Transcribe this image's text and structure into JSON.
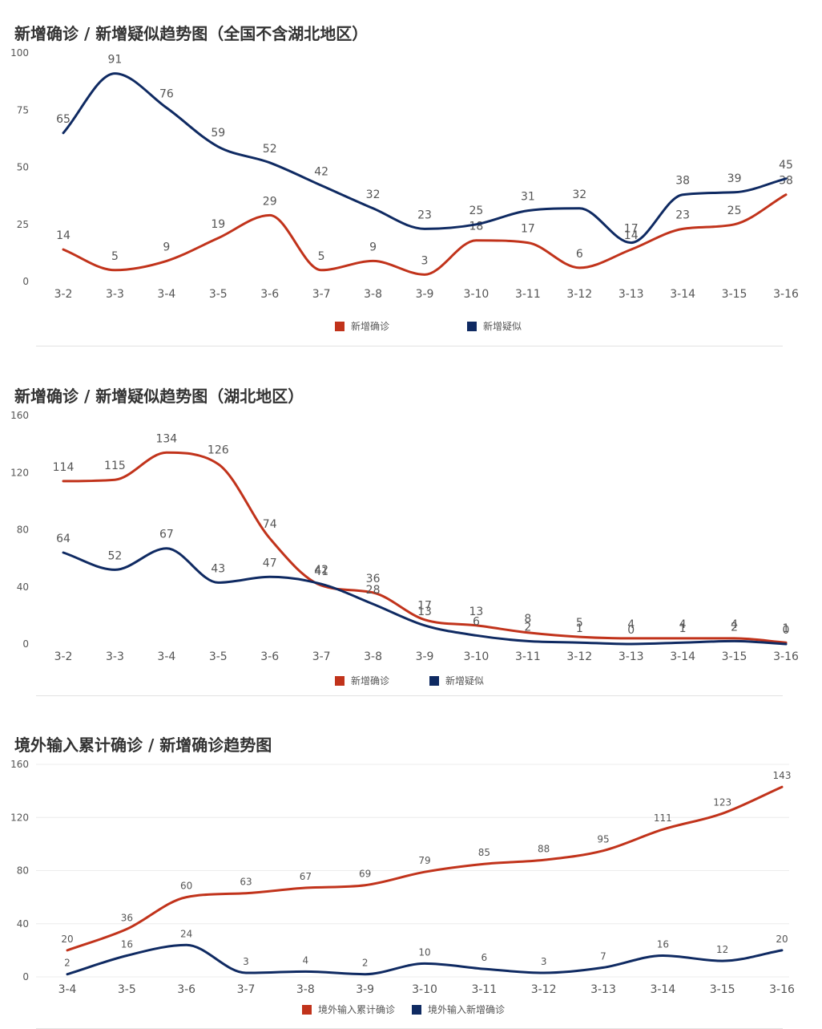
{
  "colors": {
    "red": "#c1331b",
    "navy": "#0f2a62"
  },
  "panels": [
    {
      "title": "新增确诊 / 新增疑似趋势图（全国不含湖北地区）",
      "legend": [
        "新增确诊",
        "新增疑似"
      ]
    },
    {
      "title": "新增确诊 / 新增疑似趋势图（湖北地区）",
      "legend": [
        "新增确诊",
        "新增疑似"
      ]
    },
    {
      "title": "境外输入累计确诊 / 新增确诊趋势图",
      "legend": [
        "境外输入累计确诊",
        "境外输入新增确诊"
      ]
    }
  ],
  "chart_data": [
    {
      "type": "line",
      "title": "新增确诊 / 新增疑似趋势图（全国不含湖北地区）",
      "categories": [
        "3-2",
        "3-3",
        "3-4",
        "3-5",
        "3-6",
        "3-7",
        "3-8",
        "3-9",
        "3-10",
        "3-11",
        "3-12",
        "3-13",
        "3-14",
        "3-15",
        "3-16"
      ],
      "series": [
        {
          "name": "新增确诊",
          "color": "#c1331b",
          "values": [
            14,
            5,
            9,
            19,
            29,
            5,
            9,
            3,
            18,
            17,
            6,
            14,
            23,
            25,
            38
          ]
        },
        {
          "name": "新增疑似",
          "color": "#0f2a62",
          "values": [
            65,
            91,
            76,
            59,
            52,
            42,
            32,
            23,
            25,
            31,
            32,
            17,
            38,
            39,
            45
          ]
        }
      ],
      "yticks": [
        0,
        25,
        50,
        75,
        100
      ],
      "ylim": [
        0,
        100
      ],
      "grid": false,
      "legend_position": "bottom"
    },
    {
      "type": "line",
      "title": "新增确诊 / 新增疑似趋势图（湖北地区）",
      "categories": [
        "3-2",
        "3-3",
        "3-4",
        "3-5",
        "3-6",
        "3-7",
        "3-8",
        "3-9",
        "3-10",
        "3-11",
        "3-12",
        "3-13",
        "3-14",
        "3-15",
        "3-16"
      ],
      "series": [
        {
          "name": "新增确诊",
          "color": "#c1331b",
          "values": [
            114,
            115,
            134,
            126,
            74,
            41,
            36,
            17,
            13,
            8,
            5,
            4,
            4,
            4,
            1
          ]
        },
        {
          "name": "新增疑似",
          "color": "#0f2a62",
          "values": [
            64,
            52,
            67,
            43,
            47,
            42,
            28,
            13,
            6,
            2,
            1,
            0,
            1,
            2,
            0
          ]
        }
      ],
      "yticks": [
        0,
        40,
        80,
        120,
        160
      ],
      "ylim": [
        0,
        160
      ],
      "grid": false,
      "legend_position": "bottom"
    },
    {
      "type": "line",
      "title": "境外输入累计确诊 / 新增确诊趋势图",
      "categories": [
        "3-4",
        "3-5",
        "3-6",
        "3-7",
        "3-8",
        "3-9",
        "3-10",
        "3-11",
        "3-12",
        "3-13",
        "3-14",
        "3-15",
        "3-16"
      ],
      "series": [
        {
          "name": "境外输入累计确诊",
          "color": "#c1331b",
          "values": [
            20,
            36,
            60,
            63,
            67,
            69,
            79,
            85,
            88,
            95,
            111,
            123,
            143
          ]
        },
        {
          "name": "境外输入新增确诊",
          "color": "#0f2a62",
          "values": [
            2,
            16,
            24,
            3,
            4,
            2,
            10,
            6,
            3,
            7,
            16,
            12,
            20
          ]
        }
      ],
      "yticks": [
        0,
        40,
        80,
        120,
        160
      ],
      "ylim": [
        0,
        160
      ],
      "grid": true,
      "legend_position": "bottom"
    }
  ]
}
